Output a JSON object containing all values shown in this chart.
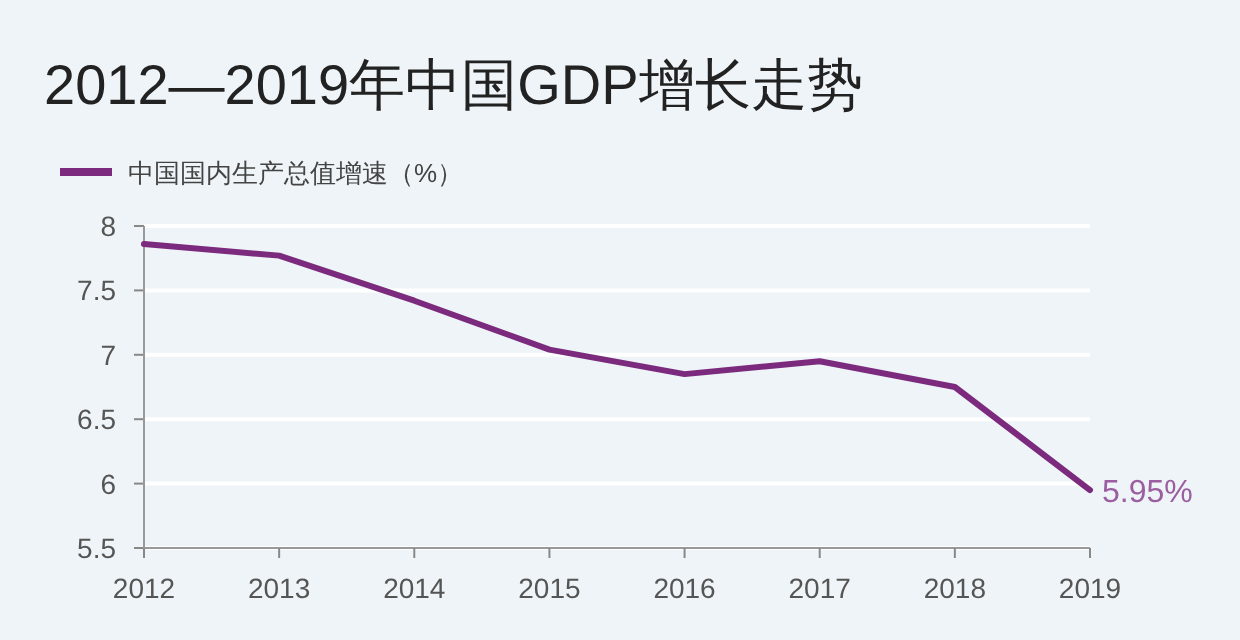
{
  "chart_data": {
    "type": "line",
    "title": "2012—2019年中国GDP增长走势",
    "categories": [
      "2012",
      "2013",
      "2014",
      "2015",
      "2016",
      "2017",
      "2018",
      "2019"
    ],
    "series": [
      {
        "name": "中国国内生产总值增速（%）",
        "color": "#7b2a7e",
        "values": [
          7.86,
          7.77,
          7.42,
          7.04,
          6.85,
          6.95,
          6.75,
          5.95
        ],
        "value_labels": [
          null,
          null,
          null,
          null,
          null,
          null,
          null,
          "5.95%"
        ]
      }
    ],
    "ylim": [
      5.5,
      8
    ],
    "yticks": [
      5.5,
      6,
      6.5,
      7,
      7.5,
      8
    ],
    "grid": "y",
    "legend": "top left",
    "marker": "none",
    "line_style": "solid"
  }
}
